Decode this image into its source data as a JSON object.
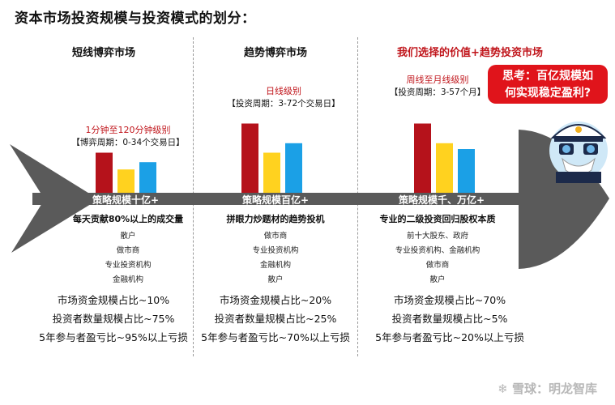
{
  "title": "资本市场投资规模与投资模式的划分：",
  "columns": [
    {
      "heading": "短线博弈市场",
      "level": "1分钟至120分钟级别",
      "period": "【博弈周期：0-34个交易日】",
      "tag": "策略规模十亿+",
      "desc": "每天贡献80%以上的成交量",
      "items": [
        "散户",
        "做市商",
        "专业投资机构",
        "金融机构"
      ],
      "stats": [
        "市场资金规模占比~10%",
        "投资者数量规模占比~75%",
        "5年参与者盈亏比~95%以上亏损"
      ]
    },
    {
      "heading": "趋势博弈市场",
      "level": "日线级别",
      "period": "【投资周期：3-72个交易日】",
      "tag": "策略规模百亿+",
      "desc": "拼眼力炒题材的趋势投机",
      "items": [
        "做市商",
        "专业投资机构",
        "金融机构",
        "散户"
      ],
      "stats": [
        "市场资金规模占比~20%",
        "投资者数量规模占比~25%",
        "5年参与者盈亏比~70%以上亏损"
      ]
    },
    {
      "heading": "我们选择的价值+趋势投资市场",
      "level": "周线至月线级别",
      "period": "【投资周期：3-57个月】",
      "tag": "策略规模千、万亿+",
      "desc": "专业的二级投资回归股权本质",
      "items": [
        "前十大股东、政府",
        "专业投资机构、金融机构",
        "做市商",
        "散户"
      ],
      "stats": [
        "市场资金规模占比~70%",
        "投资者数量规模占比~5%",
        "5年参与者盈亏比~20%以上亏损"
      ]
    }
  ],
  "bar_groups": [
    [
      0.55,
      0.32,
      0.42
    ],
    [
      0.95,
      0.55,
      0.68
    ],
    [
      0.95,
      0.68,
      0.6
    ]
  ],
  "bubble": {
    "line1": "思考：百亿规模如",
    "line2": "何实现稳定盈利?"
  },
  "watermark": "雪球：明龙智库",
  "colors": {
    "red": "#c0151b",
    "bar_red": "#b5121b",
    "bar_yellow": "#ffd21f",
    "bar_blue": "#1ba0e6",
    "fish": "#5a5a5a"
  }
}
